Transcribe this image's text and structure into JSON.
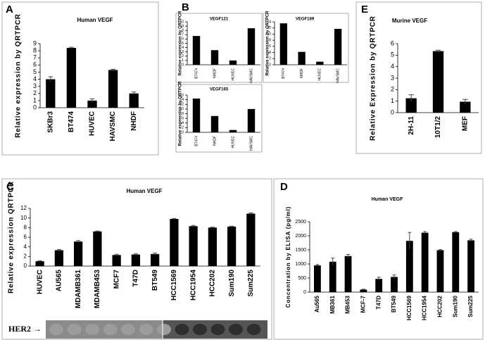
{
  "chart_data": [
    {
      "type": "bar",
      "panel": "A",
      "title": "Human VEGF",
      "ylabel": "Relative expression by QRTPCR",
      "categories": [
        "SKBr3",
        "BT474",
        "HUVEC",
        "HAVSMC",
        "NHDF"
      ],
      "values": [
        4.0,
        8.4,
        1.0,
        5.3,
        2.0
      ],
      "errors": [
        0.35,
        0.1,
        0.25,
        0.1,
        0.2
      ],
      "ylim": [
        0,
        9
      ],
      "yticks": [
        0,
        1,
        2,
        3,
        4,
        5,
        6,
        7,
        8,
        9
      ],
      "color": "#000000"
    },
    {
      "type": "bar",
      "panel": "B",
      "title": "VEGF121",
      "ylabel": "Relative expression by QRTPCR",
      "categories": [
        "BT474",
        "NHDF",
        "HUVEC",
        "HAVSMC"
      ],
      "values": [
        6.7,
        3.4,
        1.0,
        8.5
      ],
      "ylim": [
        0,
        10
      ],
      "yticks": [
        0,
        1,
        2,
        3,
        4,
        5,
        6,
        7,
        8,
        9,
        10
      ],
      "color": "#000000"
    },
    {
      "type": "bar",
      "title": "VEGF189",
      "ylabel": "Relative expression by QRTPCR",
      "categories": [
        "BT474",
        "NHDF",
        "HUVEC",
        "HAVSMC"
      ],
      "values": [
        13.5,
        4.2,
        1.0,
        11.7
      ],
      "ylim": [
        0,
        14
      ],
      "yticks": [
        0,
        2,
        4,
        6,
        8,
        10,
        12,
        14
      ],
      "color": "#000000"
    },
    {
      "type": "bar",
      "title": "VEGF165",
      "ylabel": "Relative expression by QRTPCR",
      "categories": [
        "BT474",
        "NHDF",
        "HUVEC",
        "HAVSMC"
      ],
      "values": [
        14.5,
        7.0,
        1.0,
        10.0
      ],
      "ylim": [
        0,
        16
      ],
      "yticks": [
        0,
        2,
        4,
        6,
        8,
        10,
        12,
        14,
        16
      ],
      "color": "#000000"
    },
    {
      "type": "bar",
      "panel": "E",
      "title": "Murine VEGF",
      "ylabel": "Relative Expression by QRTPCR",
      "categories": [
        "2H-11",
        "10T1/2",
        "MEF"
      ],
      "values": [
        1.25,
        5.35,
        0.95
      ],
      "errors": [
        0.3,
        0.08,
        0.2
      ],
      "ylim": [
        0,
        6
      ],
      "yticks": [
        0,
        1,
        2,
        3,
        4,
        5,
        6
      ],
      "color": "#000000"
    },
    {
      "type": "bar",
      "panel": "C",
      "title": "Human VEGF",
      "ylabel": "Relative expression QRTPCR",
      "categories": [
        "HUVEC",
        "AU565",
        "MDAMB361",
        "MDAMB453",
        "MCF7",
        "T47D",
        "BT549",
        "HCC1569",
        "HCC1954",
        "HCC202",
        "Sum190",
        "Sum225"
      ],
      "values": [
        1.0,
        3.3,
        5.1,
        7.2,
        2.3,
        2.4,
        2.5,
        9.8,
        8.3,
        8.0,
        8.2,
        10.9
      ],
      "errors": [
        0.1,
        0.15,
        0.2,
        0.1,
        0.15,
        0.15,
        0.2,
        0.1,
        0.15,
        0.1,
        0.1,
        0.15
      ],
      "ylim": [
        0,
        12
      ],
      "yticks": [
        0,
        2,
        4,
        6,
        8,
        10,
        12
      ],
      "color": "#000000",
      "blot_label": "HER2 →"
    },
    {
      "type": "bar",
      "panel": "D",
      "title": "Human VEGF",
      "ylabel": "Concentration by ELISA (pg/ml)",
      "categories": [
        "Au565",
        "MB361",
        "MB453",
        "MCF-7",
        "T47D",
        "BT549",
        "HCC1569",
        "HCC1954",
        "HCC202",
        "Sum190",
        "Sum225"
      ],
      "values": [
        950,
        1080,
        1280,
        90,
        470,
        540,
        1820,
        2110,
        1490,
        2130,
        1840
      ],
      "errors": [
        30,
        130,
        60,
        15,
        60,
        70,
        300,
        40,
        20,
        20,
        40
      ],
      "ylim": [
        0,
        2500
      ],
      "yticks": [
        0,
        500,
        1000,
        1500,
        2000,
        2500
      ],
      "color": "#000000"
    }
  ]
}
